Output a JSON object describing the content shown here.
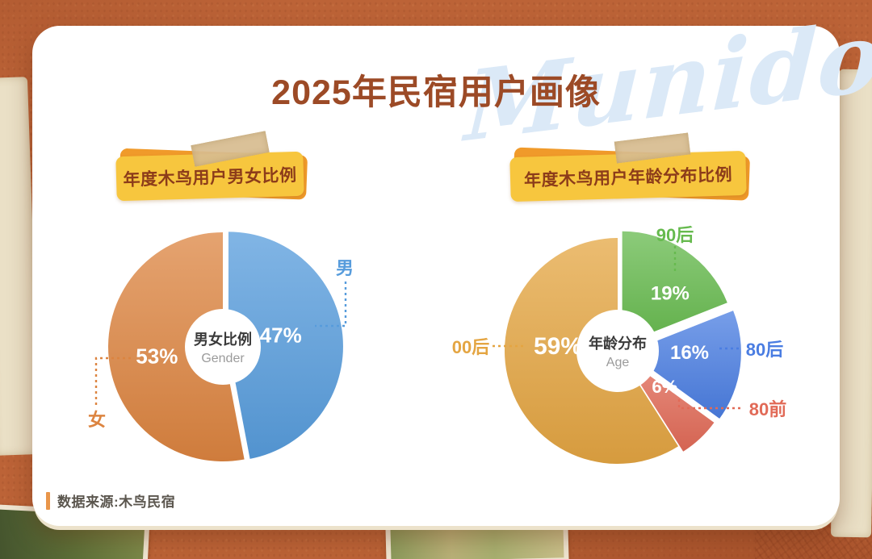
{
  "page": {
    "title": "2025年民宿用户画像",
    "watermark": "Munido",
    "source_note": "数据来源:木鸟民宿"
  },
  "chart_data": [
    {
      "type": "pie",
      "title": "年度木鸟用户男女比例",
      "center_label": "男女比例",
      "center_sublabel": "Gender",
      "unit": "%",
      "start_angle": "12-oclock",
      "direction": "clockwise",
      "legend_position": "callouts-outside",
      "slices": [
        {
          "label": "男",
          "value": 47,
          "color": "#579CDC"
        },
        {
          "label": "女",
          "value": 53,
          "color": "#DC8440"
        }
      ]
    },
    {
      "type": "pie",
      "title": "年度木鸟用户年龄分布比例",
      "center_label": "年龄分布",
      "center_sublabel": "Age",
      "unit": "%",
      "start_angle": "12-oclock",
      "direction": "clockwise",
      "legend_position": "callouts-outside",
      "slices": [
        {
          "label": "90后",
          "value": 19,
          "color": "#66BA4E"
        },
        {
          "label": "80后",
          "value": 16,
          "color": "#4A7DE2"
        },
        {
          "label": "80前",
          "value": 6,
          "color": "#E16A57"
        },
        {
          "label": "00后",
          "value": 59,
          "color": "#E4A542"
        }
      ]
    }
  ],
  "theme": {
    "background": "#BC6337",
    "card": "#FFFFFF",
    "title_color": "#9C4A26",
    "badge_yellow": "#F7C63E",
    "badge_orange": "#F09A2A",
    "badge_text": "#8C3C1A",
    "watermark_blue": "#DBE9F7",
    "center_label_color": "#3A3A3A",
    "center_sublabel_color": "#9B9B9B",
    "source_accent": "#E9964A"
  }
}
